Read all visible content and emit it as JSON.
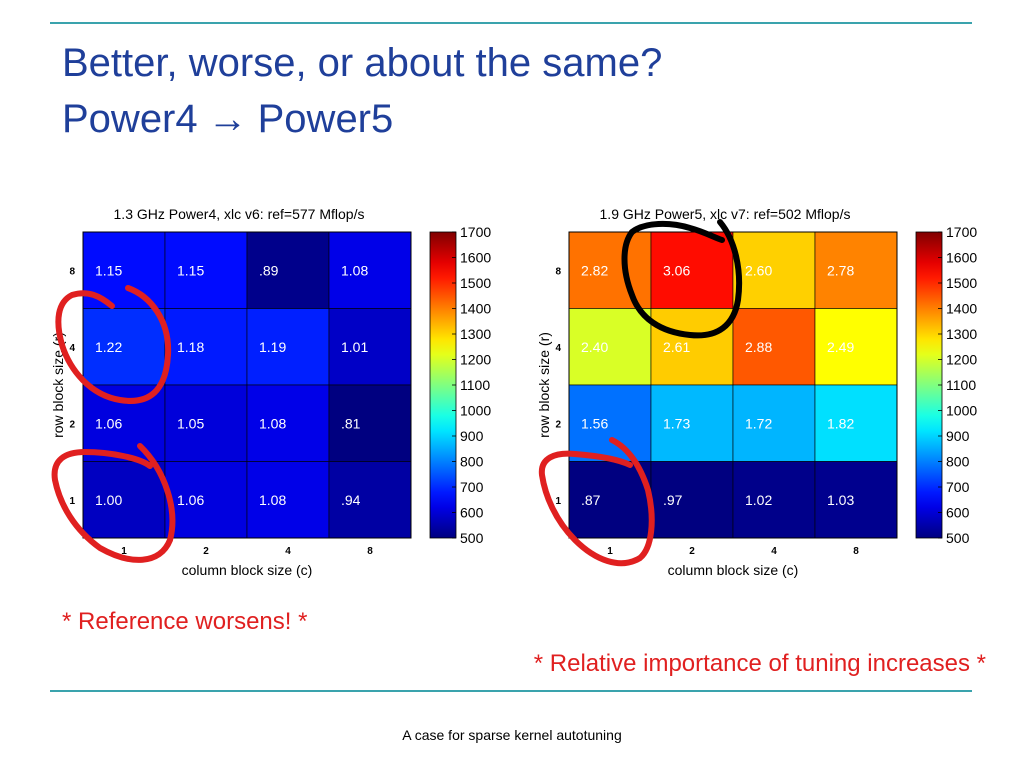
{
  "title": {
    "line1": "Better, worse, or about the same?",
    "line2_a": "Power4",
    "line2_arrow": "→",
    "line2_b": "Power5"
  },
  "notes": {
    "left": "* Reference worsens! *",
    "right": "* Relative importance of tuning increases *"
  },
  "footer": "A case for sparse kernel autotuning",
  "colors": {
    "title": "#1f3f9a",
    "rule": "#3aa3ad",
    "note": "#e02020",
    "annotation_red": "#e02020",
    "annotation_black": "#000000"
  },
  "chart_data": [
    {
      "type": "heatmap",
      "title": "1.3 GHz Power4, xlc v6: ref=577 Mflop/s",
      "xlabel": "column block size (c)",
      "ylabel": "row block size (r)",
      "x_ticks": [
        "1",
        "2",
        "4",
        "8"
      ],
      "y_ticks": [
        "8",
        "4",
        "2",
        "1"
      ],
      "labels": [
        [
          "1.15",
          "1.15",
          ".89",
          "1.08"
        ],
        [
          "1.22",
          "1.18",
          "1.19",
          "1.01"
        ],
        [
          "1.06",
          "1.05",
          "1.08",
          ".81"
        ],
        [
          "1.00",
          "1.06",
          "1.08",
          ".94"
        ]
      ],
      "values": [
        [
          663,
          663,
          514,
          623
        ],
        [
          704,
          681,
          687,
          583
        ],
        [
          612,
          606,
          623,
          467
        ],
        [
          577,
          612,
          623,
          542
        ]
      ],
      "colorbar": {
        "range": [
          500,
          1700
        ],
        "ticks": [
          "1700",
          "1600",
          "1500",
          "1400",
          "1300",
          "1200",
          "1100",
          "1000",
          "900",
          "800",
          "700",
          "600",
          "500"
        ]
      }
    },
    {
      "type": "heatmap",
      "title": "1.9 GHz Power5, xlc v7: ref=502 Mflop/s",
      "xlabel": "column block size (c)",
      "ylabel": "row block size (r)",
      "x_ticks": [
        "1",
        "2",
        "4",
        "8"
      ],
      "y_ticks": [
        "8",
        "4",
        "2",
        "1"
      ],
      "labels": [
        [
          "2.82",
          "3.06",
          "2.60",
          "2.78"
        ],
        [
          "2.40",
          "2.61",
          "2.88",
          "2.49"
        ],
        [
          "1.56",
          "1.73",
          "1.72",
          "1.82"
        ],
        [
          ".87",
          ".97",
          "1.02",
          "1.03"
        ]
      ],
      "values": [
        [
          1416,
          1536,
          1305,
          1396
        ],
        [
          1205,
          1310,
          1446,
          1250
        ],
        [
          783,
          868,
          863,
          914
        ],
        [
          437,
          487,
          512,
          517
        ]
      ],
      "colorbar": {
        "range": [
          500,
          1700
        ],
        "ticks": [
          "1700",
          "1600",
          "1500",
          "1400",
          "1300",
          "1200",
          "1100",
          "1000",
          "900",
          "800",
          "700",
          "600",
          "500"
        ]
      }
    }
  ]
}
